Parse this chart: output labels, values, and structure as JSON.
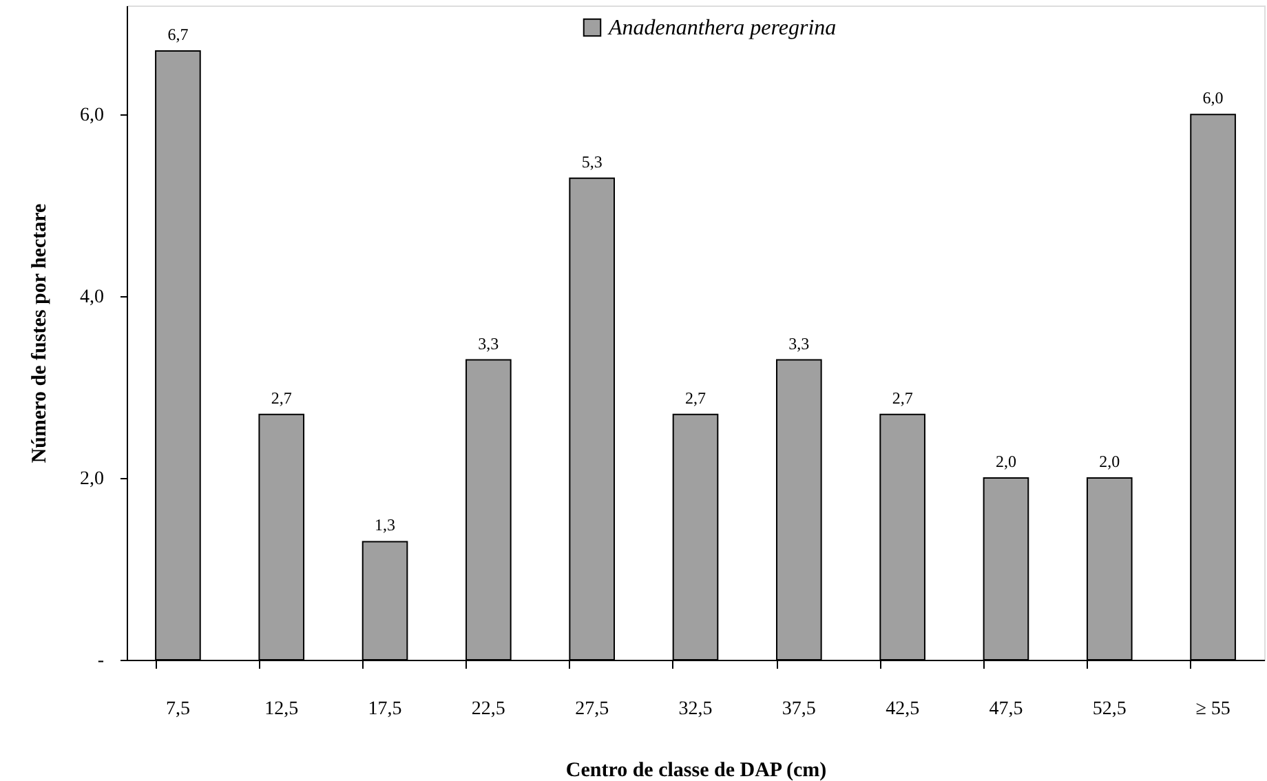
{
  "chart_data": {
    "type": "bar",
    "xlabel": "Centro de classe de DAP (cm)",
    "ylabel": "Número de fustes por hectare",
    "categories": [
      "7,5",
      "12,5",
      "17,5",
      "22,5",
      "27,5",
      "32,5",
      "37,5",
      "42,5",
      "47,5",
      "52,5",
      "≥ 55"
    ],
    "series": [
      {
        "name": "Anadenanthera peregrina",
        "color": "#a0a0a0",
        "values": [
          6.7,
          2.7,
          1.3,
          3.3,
          5.3,
          2.7,
          3.3,
          2.7,
          2.0,
          2.0,
          6.0
        ],
        "value_labels": [
          "6,7",
          "2,7",
          "1,3",
          "3,3",
          "5,3",
          "2,7",
          "3,3",
          "2,7",
          "2,0",
          "2,0",
          "6,0"
        ]
      }
    ],
    "ylim": [
      0,
      7.2
    ],
    "yticks": [
      {
        "value": 0,
        "label": "-"
      },
      {
        "value": 2,
        "label": "2,0"
      },
      {
        "value": 4,
        "label": "4,0"
      },
      {
        "value": 6,
        "label": "6,0"
      }
    ],
    "grid": false,
    "legend": "top"
  }
}
